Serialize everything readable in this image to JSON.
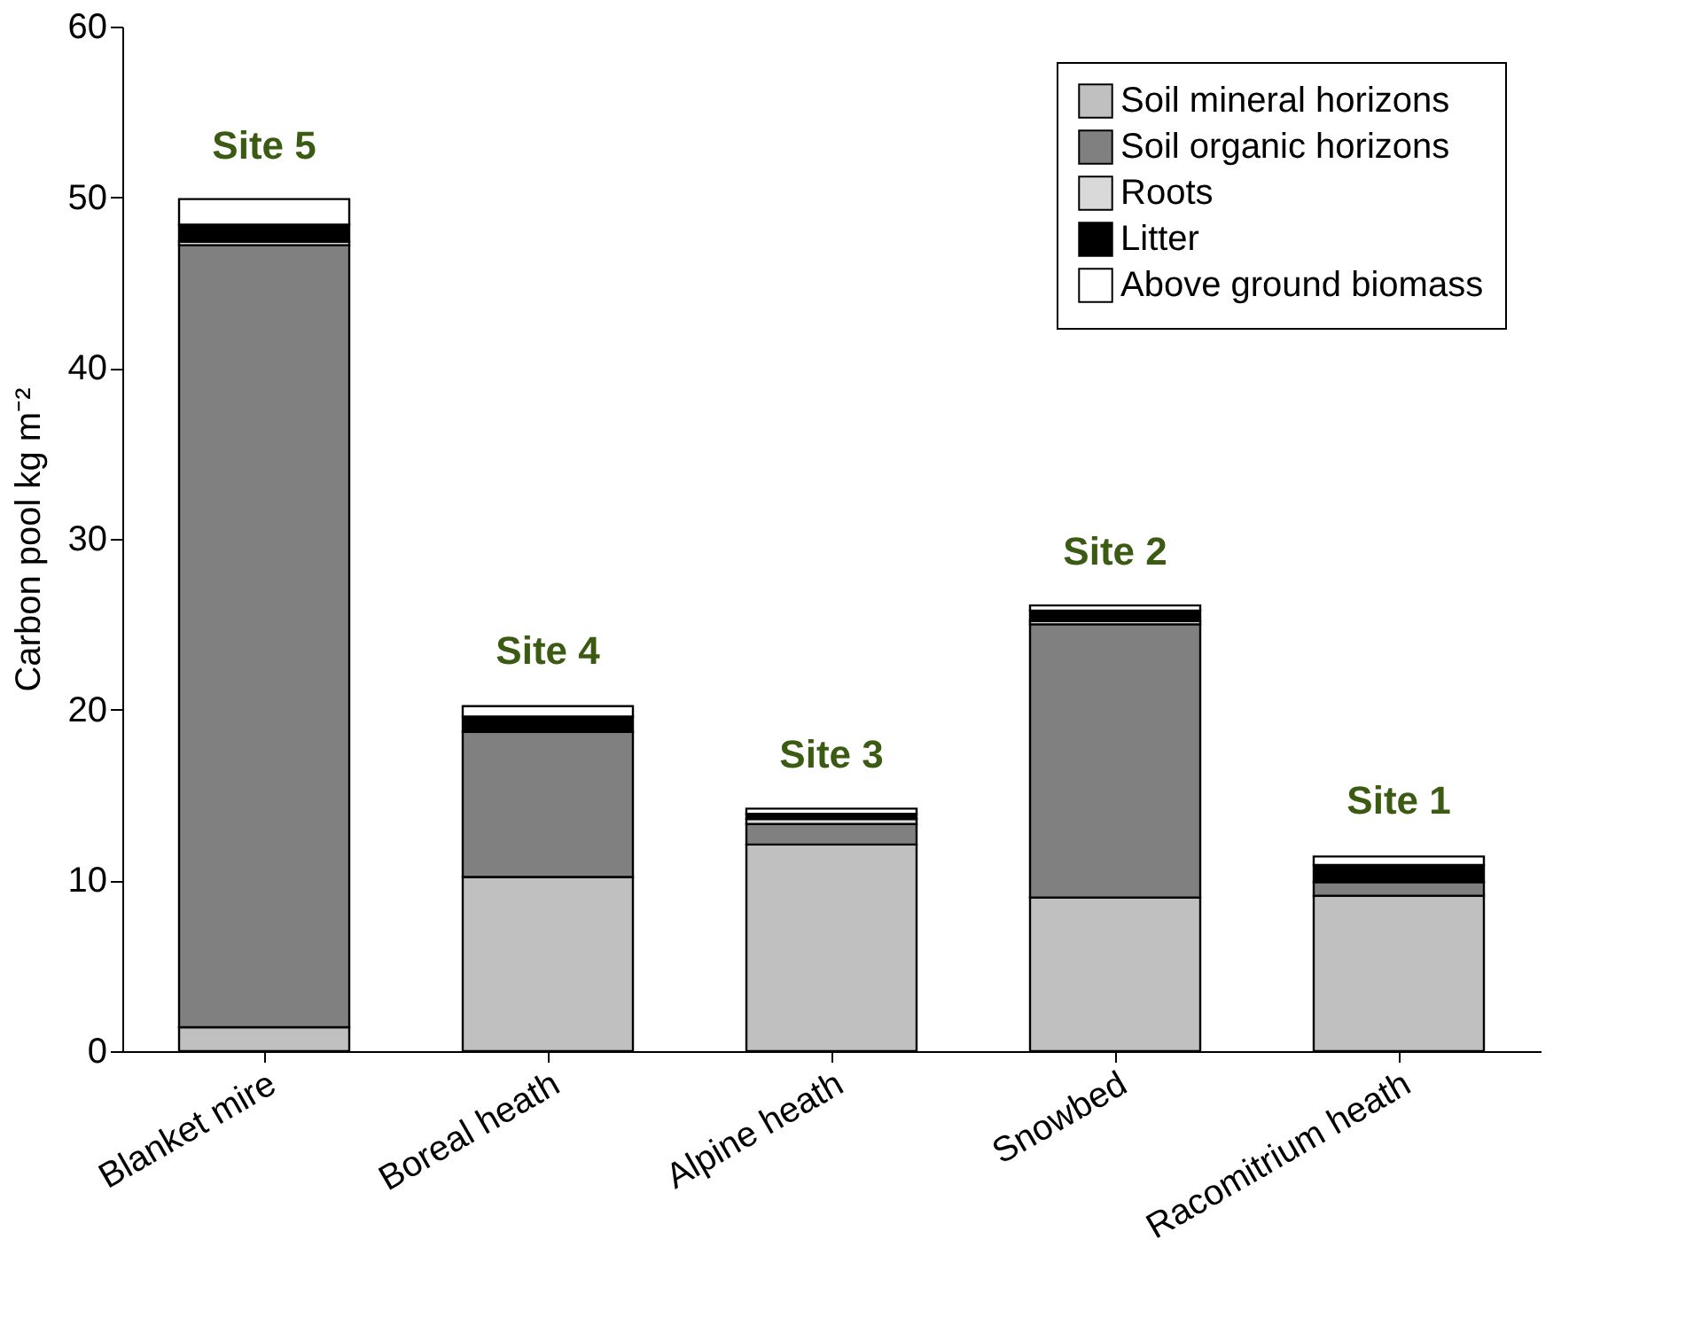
{
  "chart_data": {
    "type": "bar",
    "stacked": true,
    "ylabel": "Carbon pool kg m⁻²",
    "categories": [
      "Blanket mire",
      "Boreal heath",
      "Alpine heath",
      "Snowbed",
      "Racomitrium heath"
    ],
    "series": [
      {
        "name": "Soil mineral horizons",
        "color": "#c0c0c0",
        "values": [
          1.4,
          10.2,
          12.1,
          9.0,
          9.1
        ]
      },
      {
        "name": "Soil organic horizons",
        "color": "#808080",
        "values": [
          45.8,
          8.5,
          1.2,
          16.0,
          0.8
        ]
      },
      {
        "name": "Roots",
        "color": "#d9d9d9",
        "values": [
          0.2,
          null,
          0.3,
          0.2,
          null
        ]
      },
      {
        "name": "Litter",
        "color": "#000000",
        "values": [
          1.0,
          0.9,
          0.3,
          0.6,
          1.0
        ]
      },
      {
        "name": "Above ground biomass",
        "color": "#ffffff",
        "values": [
          1.5,
          0.6,
          0.3,
          0.3,
          0.5
        ]
      }
    ],
    "ylim": [
      0,
      60
    ],
    "yticks": [
      0,
      10,
      20,
      30,
      40,
      50,
      60
    ],
    "grid": false,
    "legend": "top right",
    "annotations": [
      {
        "text": "Site 5",
        "x": "Blanket mire",
        "y": 49.9
      },
      {
        "text": "Site 4",
        "x": "Boreal heath",
        "y": 20.3
      },
      {
        "text": "Site 3",
        "x": "Alpine heath",
        "y": 14.2
      },
      {
        "text": "Site 2",
        "x": "Snowbed",
        "y": 26.1
      },
      {
        "text": "Site 1",
        "x": "Racomitrium heath",
        "y": 11.5
      }
    ]
  }
}
